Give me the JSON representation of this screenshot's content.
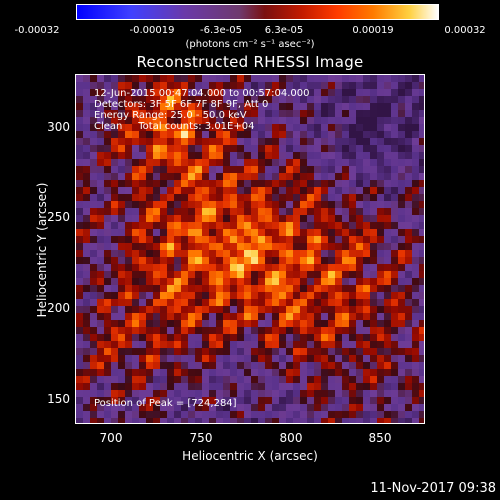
{
  "colorbar": {
    "ticks": [
      "-0.00032",
      "-0.00019",
      "-6.3e-05",
      "6.3e-05",
      "0.00019",
      "0.00032"
    ],
    "units": "(photons cm⁻² s⁻¹ asec⁻²)"
  },
  "title": "Reconstructed RHESSI Image",
  "overlay": {
    "time_range": "12-Jun-2015 00:47:04.000 to 00:57:04.000",
    "detectors": "Detectors: 3F 5F 6F 7F 8F 9F, Att 0",
    "energy": "Energy Range: 25.0 - 50.0 keV",
    "clean": "Clean     Total counts: 3.01E+04",
    "peak": "Position of Peak = [724,284]"
  },
  "axes": {
    "xlabel": "Heliocentric X (arcsec)",
    "ylabel": "Heliocentric Y (arcsec)",
    "xticks": [
      "700",
      "750",
      "800",
      "850"
    ],
    "yticks": [
      "300",
      "250",
      "200",
      "150"
    ],
    "xlim": [
      680,
      875
    ],
    "ylim": [
      135,
      330
    ]
  },
  "footer": "11-Nov-2017 09:38",
  "colors": {
    "background": "#000000",
    "axis": "#ffffff"
  }
}
